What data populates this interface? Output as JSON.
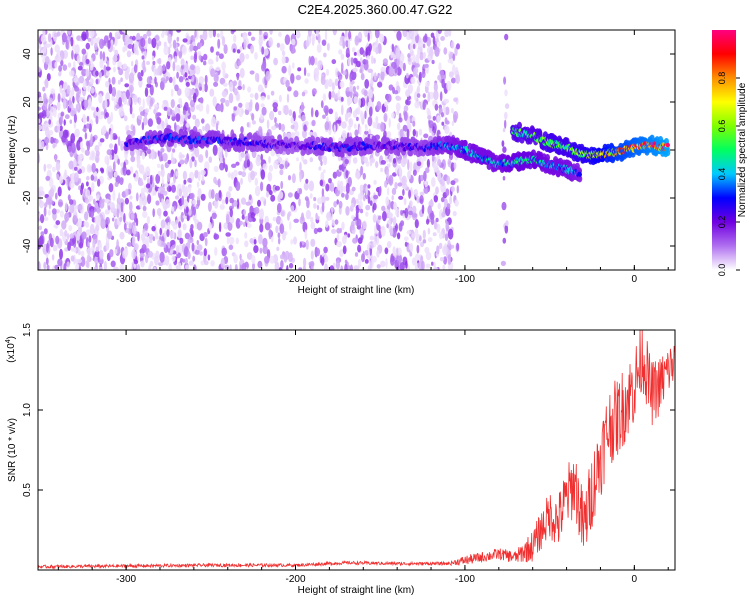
{
  "figure": {
    "title": "C2E4.2025.360.00.47.G22"
  },
  "chart_data": [
    {
      "type": "heatmap",
      "name": "spectrogram",
      "xlabel": "Height of straight line (km)",
      "ylabel": "Frequency (Hz)",
      "xlim": [
        -352,
        24
      ],
      "ylim": [
        -50,
        50
      ],
      "xticks": [
        -300,
        -200,
        -100,
        0
      ],
      "xtick_labels": [
        "-300",
        "-200",
        "-100",
        "0"
      ],
      "yticks": [
        -40,
        -20,
        0,
        20,
        40
      ],
      "ytick_labels": [
        "-40",
        "-20",
        "0",
        "20",
        "40"
      ],
      "colorbar": {
        "label": "Normalized spectral amplitude",
        "range": [
          0,
          1
        ],
        "ticks": [
          0.0,
          0.2,
          0.4,
          0.6,
          0.8
        ],
        "tick_labels": [
          "0.0",
          "0.2",
          "0.4",
          "0.6",
          "0.8"
        ],
        "colormap": [
          "#ffffff",
          "#b070f0",
          "#7000e0",
          "#0000ff",
          "#00c8ff",
          "#00ff60",
          "#80ff00",
          "#ffff00",
          "#ff9000",
          "#ff0000",
          "#ff0080"
        ]
      },
      "noise_regions": [
        {
          "x": [
            -352,
            -258
          ],
          "density": "high"
        },
        {
          "x": [
            -258,
            -175
          ],
          "density": "medium"
        },
        {
          "x": [
            -175,
            -125
          ],
          "density": "medium"
        },
        {
          "x": [
            -125,
            -104
          ],
          "density": "low"
        },
        {
          "x": [
            -78,
            -75
          ],
          "density": "sparse"
        }
      ],
      "signal_track": [
        {
          "x": -300,
          "y": 3,
          "amp": 0.25
        },
        {
          "x": -275,
          "y": 5,
          "amp": 0.3
        },
        {
          "x": -250,
          "y": 4,
          "amp": 0.3
        },
        {
          "x": -225,
          "y": 3,
          "amp": 0.25
        },
        {
          "x": -200,
          "y": 2,
          "amp": 0.2
        },
        {
          "x": -175,
          "y": 1,
          "amp": 0.3
        },
        {
          "x": -150,
          "y": 2,
          "amp": 0.25
        },
        {
          "x": -125,
          "y": 1,
          "amp": 0.25
        },
        {
          "x": -110,
          "y": 2,
          "amp": 0.35
        },
        {
          "x": -100,
          "y": 0,
          "amp": 0.4
        },
        {
          "x": -90,
          "y": -3,
          "amp": 0.4
        },
        {
          "x": -80,
          "y": -6,
          "amp": 0.4
        },
        {
          "x": -70,
          "y": -5,
          "amp": 0.45
        },
        {
          "x": -60,
          "y": -4,
          "amp": 0.45
        },
        {
          "x": -50,
          "y": -6,
          "amp": 0.4
        },
        {
          "x": -40,
          "y": -8,
          "amp": 0.4
        },
        {
          "x": -32,
          "y": -10,
          "amp": 0.35
        }
      ],
      "signal_track_upper": [
        {
          "x": -72,
          "y": 8,
          "amp": 0.5
        },
        {
          "x": -60,
          "y": 6,
          "amp": 0.5
        },
        {
          "x": -50,
          "y": 3,
          "amp": 0.55
        },
        {
          "x": -40,
          "y": 1,
          "amp": 0.55
        },
        {
          "x": -30,
          "y": -2,
          "amp": 0.6
        },
        {
          "x": -20,
          "y": -2,
          "amp": 0.7
        },
        {
          "x": -10,
          "y": -1,
          "amp": 0.8
        },
        {
          "x": 0,
          "y": 1,
          "amp": 0.85
        },
        {
          "x": 10,
          "y": 2,
          "amp": 0.9
        },
        {
          "x": 20,
          "y": 1,
          "amp": 0.95
        }
      ]
    },
    {
      "type": "line",
      "name": "snr",
      "xlabel": "Height of straight line (km)",
      "ylabel": "SNR (10 * v/v)",
      "multiplier_label": "(x10",
      "multiplier_exp": "4",
      "multiplier_close": ")",
      "xlim": [
        -352,
        24
      ],
      "ylim": [
        0,
        1.5
      ],
      "xticks": [
        -300,
        -200,
        -100,
        0
      ],
      "xtick_labels": [
        "-300",
        "-200",
        "-100",
        "0"
      ],
      "yticks": [
        0.5,
        1.0,
        1.5
      ],
      "ytick_labels": [
        "0.5",
        "1.0",
        "1.5"
      ],
      "series": [
        {
          "name": "SNR",
          "color": "#f03030",
          "points": [
            [
              -352,
              0.02
            ],
            [
              -300,
              0.025
            ],
            [
              -250,
              0.03
            ],
            [
              -200,
              0.03
            ],
            [
              -170,
              0.045
            ],
            [
              -140,
              0.04
            ],
            [
              -110,
              0.04
            ],
            [
              -100,
              0.06
            ],
            [
              -90,
              0.08
            ],
            [
              -80,
              0.1
            ],
            [
              -70,
              0.08
            ],
            [
              -60,
              0.15
            ],
            [
              -50,
              0.35
            ],
            [
              -45,
              0.3
            ],
            [
              -40,
              0.45
            ],
            [
              -35,
              0.55
            ],
            [
              -30,
              0.25
            ],
            [
              -25,
              0.5
            ],
            [
              -20,
              0.7
            ],
            [
              -15,
              0.9
            ],
            [
              -10,
              0.95
            ],
            [
              -5,
              1.05
            ],
            [
              0,
              1.15
            ],
            [
              5,
              1.35
            ],
            [
              10,
              1.1
            ],
            [
              15,
              1.15
            ],
            [
              20,
              1.25
            ],
            [
              24,
              1.3
            ]
          ],
          "noise_amplitude": [
            [
              -352,
              0.01
            ],
            [
              -110,
              0.01
            ],
            [
              -100,
              0.03
            ],
            [
              -70,
              0.04
            ],
            [
              -60,
              0.1
            ],
            [
              -40,
              0.2
            ],
            [
              -20,
              0.25
            ],
            [
              0,
              0.25
            ],
            [
              24,
              0.15
            ]
          ]
        }
      ]
    }
  ]
}
